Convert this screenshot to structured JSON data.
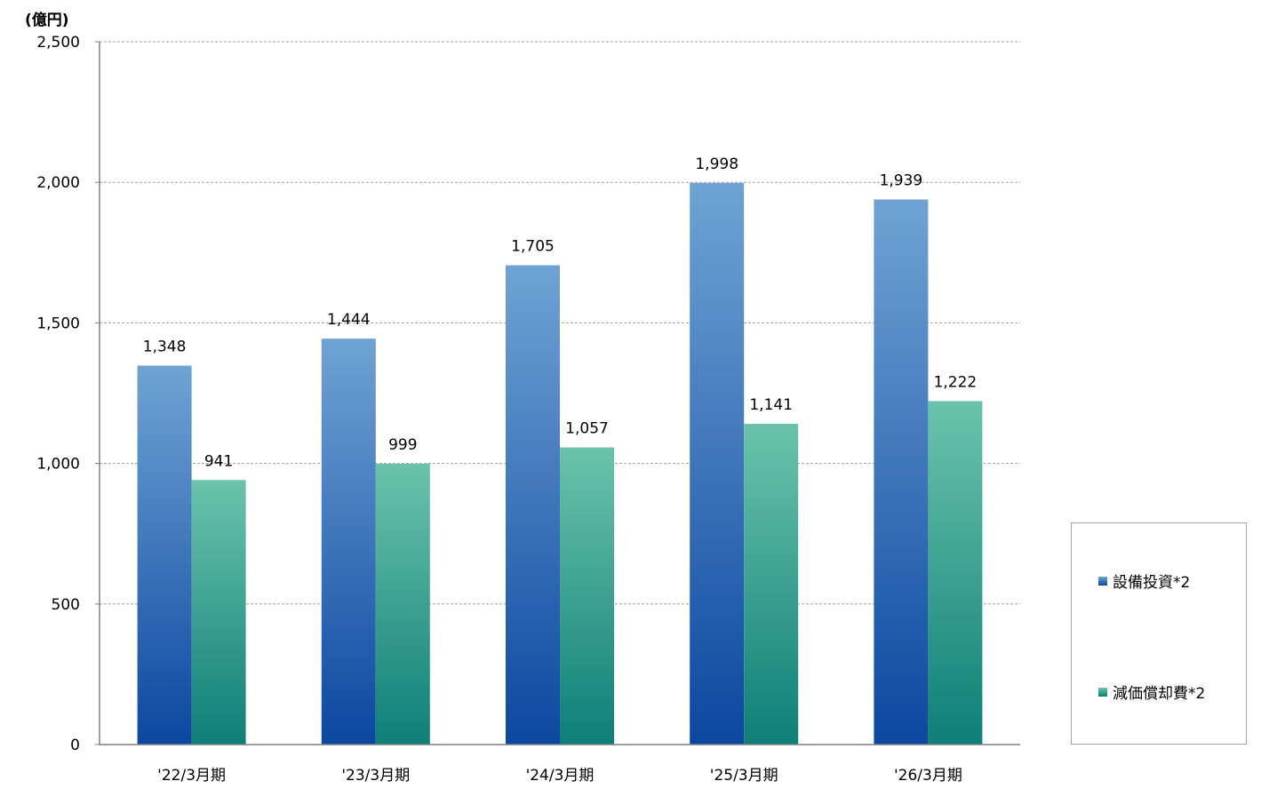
{
  "chart_data": {
    "type": "bar",
    "ylabel": "(億円)",
    "categories": [
      "'22/3月期",
      "'23/3月期",
      "'24/3月期",
      "'25/3月期",
      "'26/3月期"
    ],
    "series": [
      {
        "name": "設備投資*2",
        "values": [
          1348,
          1444,
          1705,
          1998,
          1939
        ],
        "labels": [
          "1,348",
          "1,444",
          "1,705",
          "1,998",
          "1,939"
        ],
        "color_top": "#6fa3d4",
        "color_bottom": "#0c47a0"
      },
      {
        "name": "減価償却費*2",
        "values": [
          941,
          999,
          1057,
          1141,
          1222
        ],
        "labels": [
          "941",
          "999",
          "1,057",
          "1,141",
          "1,222"
        ],
        "color_top": "#6ac3ab",
        "color_bottom": "#0e7f77"
      }
    ],
    "ylim": [
      0,
      2500
    ],
    "yticks": [
      0,
      500,
      1000,
      1500,
      2000,
      2500
    ],
    "ytick_labels": [
      "0",
      "500",
      "1,000",
      "1,500",
      "2,000",
      "2,500"
    ],
    "grid": true,
    "legend_position": "bottom-right"
  }
}
